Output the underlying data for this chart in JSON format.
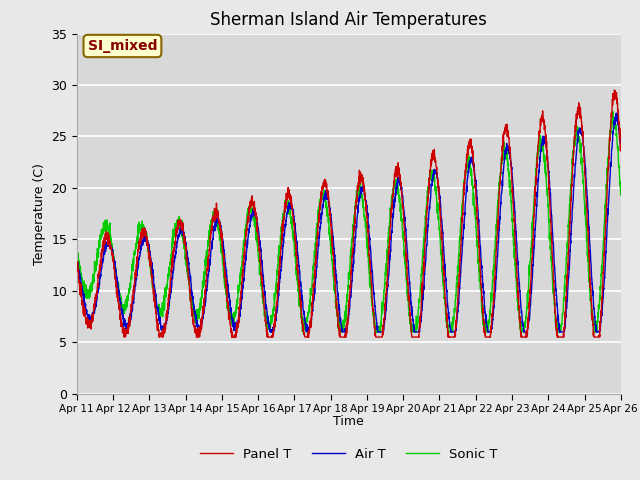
{
  "title": "Sherman Island Air Temperatures",
  "xlabel": "Time",
  "ylabel": "Temperature (C)",
  "ylim": [
    0,
    35
  ],
  "background_color": "#e8e8e8",
  "plot_bg_color": "#d8d8d8",
  "panel_t_color": "#cc0000",
  "air_t_color": "#0000cc",
  "sonic_t_color": "#00cc00",
  "annotation_text": "SI_mixed",
  "annotation_bg": "#ffffcc",
  "annotation_border": "#886600",
  "xtick_labels": [
    "Apr 11",
    "Apr 12",
    "Apr 13",
    "Apr 14",
    "Apr 15",
    "Apr 16",
    "Apr 17",
    "Apr 18",
    "Apr 19",
    "Apr 20",
    "Apr 21",
    "Apr 22",
    "Apr 23",
    "Apr 24",
    "Apr 25",
    "Apr 26"
  ],
  "ytick_values": [
    0,
    5,
    10,
    15,
    20,
    25,
    30,
    35
  ],
  "legend_entries": [
    "Panel T",
    "Air T",
    "Sonic T"
  ]
}
